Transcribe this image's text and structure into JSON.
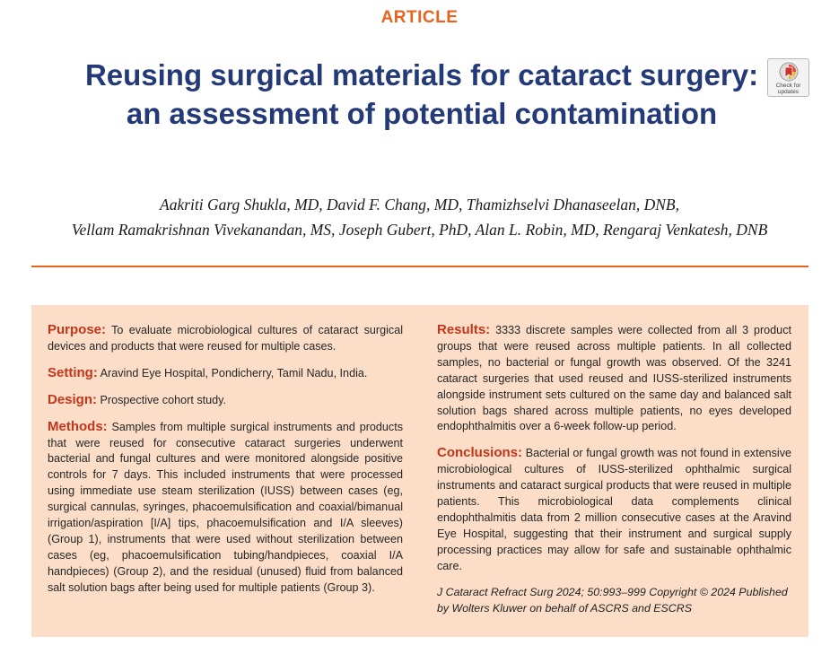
{
  "header": {
    "section_label": "ARTICLE",
    "title": "Reusing surgical materials for cataract surgery: an assessment of potential contamination",
    "badge_text": "Check for updates"
  },
  "authors": {
    "line1": "Aakriti Garg Shukla, MD, David F. Chang, MD, Thamizhselvi Dhanaseelan, DNB,",
    "line2": "Vellam Ramakrishnan Vivekanandan, MS, Joseph Gubert, PhD, Alan L. Robin, MD, Rengaraj Venkatesh, DNB"
  },
  "abstract": {
    "purpose": {
      "heading": "Purpose:",
      "text": "To evaluate microbiological cultures of cataract surgical devices and products that were reused for multiple cases."
    },
    "setting": {
      "heading": "Setting:",
      "text": "Aravind Eye Hospital, Pondicherry, Tamil Nadu, India."
    },
    "design": {
      "heading": "Design:",
      "text": "Prospective cohort study."
    },
    "methods": {
      "heading": "Methods:",
      "text": "Samples from multiple surgical instruments and products that were reused for consecutive cataract surgeries underwent bacterial and fungal cultures and were monitored alongside positive controls for 7 days. This included instruments that were processed using immediate use steam sterilization (IUSS) between cases (eg, surgical cannulas, syringes, phacoemulsification and coaxial/bimanual irrigation/aspiration [I/A] tips, phacoemulsification and I/A sleeves) (Group 1), instruments that were used without sterilization between cases (eg, phacoemulsification tubing/handpieces, coaxial I/A handpieces) (Group 2), and the residual (unused) fluid from balanced salt solution bags after being used for multiple patients (Group 3)."
    },
    "results": {
      "heading": "Results:",
      "text": "3333 discrete samples were collected from all 3 product groups that were reused across multiple patients. In all collected samples, no bacterial or fungal growth was observed. Of the 3241 cataract surgeries that used reused and IUSS-sterilized instruments alongside instrument sets cultured on the same day and balanced salt solution bags shared across multiple patients, no eyes developed endophthalmitis over a 6-week follow-up period."
    },
    "conclusions": {
      "heading": "Conclusions:",
      "text": "Bacterial or fungal growth was not found in extensive microbiological cultures of IUSS-sterilized ophthalmic surgical instruments and cataract surgical products that were reused in multiple patients. This microbiological data complements clinical endophthalmitis data from 2 million consecutive cases at the Aravind Eye Hospital, suggesting that their instrument and surgical supply processing practices may allow for safe and sustainable ophthalmic care."
    },
    "citation": "J Cataract Refract Surg 2024; 50:993–999 Copyright © 2024 Published by Wolters Kluwer on behalf of ASCRS and ESCRS"
  },
  "colors": {
    "accent": "#e8641e",
    "title": "#243a78",
    "heading": "#c2361a",
    "abstract_bg": "#fbddc8"
  },
  "icons": {
    "badge": "check-for-updates-icon"
  }
}
